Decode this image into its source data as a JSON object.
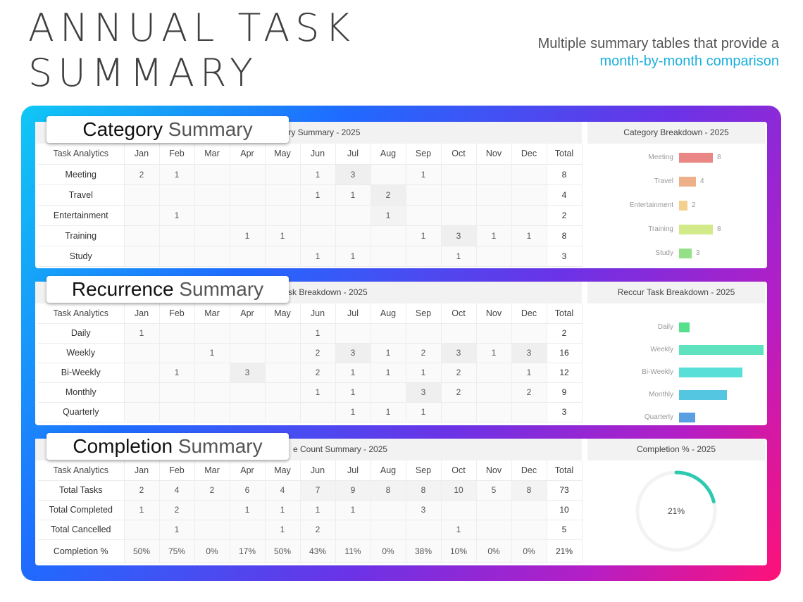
{
  "header": {
    "title_line1": "ANNUAL TASK",
    "title_line2": "SUMMARY",
    "subtitle_line1": "Multiple summary tables that provide a",
    "subtitle_line2": "month-by-month comparison",
    "accent_color": "#1bb0dc"
  },
  "months": [
    "Jan",
    "Feb",
    "Mar",
    "Apr",
    "May",
    "Jun",
    "Jul",
    "Aug",
    "Sep",
    "Oct",
    "Nov",
    "Dec"
  ],
  "category": {
    "badge_bold": "Category",
    "badge_light": "Summary",
    "table_title": "gory Summary - 2025",
    "corner": "Task Analytics",
    "total_header": "Total",
    "rows": [
      {
        "label": "Meeting",
        "color": "#e57373",
        "values": [
          "2",
          "1",
          "",
          "",
          "",
          "1",
          "3",
          "",
          "1",
          "",
          "",
          ""
        ],
        "total": "8"
      },
      {
        "label": "Travel",
        "color": "#f0a070",
        "values": [
          "",
          "",
          "",
          "",
          "",
          "1",
          "1",
          "2",
          "",
          "",
          "",
          ""
        ],
        "total": "4"
      },
      {
        "label": "Entertainment",
        "color": "#f1c878",
        "values": [
          "",
          "1",
          "",
          "",
          "",
          "",
          "",
          "1",
          "",
          "",
          "",
          ""
        ],
        "total": "2"
      },
      {
        "label": "Training",
        "color": "#c9e07a",
        "values": [
          "",
          "",
          "",
          "1",
          "1",
          "",
          "",
          "",
          "1",
          "3",
          "1",
          "1"
        ],
        "total": "8"
      },
      {
        "label": "Study",
        "color": "#8edc72",
        "values": [
          "",
          "",
          "",
          "",
          "",
          "1",
          "1",
          "",
          "",
          "1",
          "",
          ""
        ],
        "total": "3"
      }
    ],
    "panel_title": "Category Breakdown - 2025",
    "bars": [
      {
        "label": "Meeting",
        "value": 8,
        "display": "8",
        "color": "#ea8686"
      },
      {
        "label": "Travel",
        "value": 4,
        "display": "4",
        "color": "#eeb088"
      },
      {
        "label": "Entertainment",
        "value": 2,
        "display": "2",
        "color": "#f3d08e"
      },
      {
        "label": "Training",
        "value": 8,
        "display": "8",
        "color": "#d3ea8a"
      },
      {
        "label": "Study",
        "value": 3,
        "display": "3",
        "color": "#93e086"
      }
    ]
  },
  "recurrence": {
    "badge_bold": "Recurrence",
    "badge_light": "Summary",
    "table_title": "sk Breakdown - 2025",
    "corner": "Task Analytics",
    "total_header": "Total",
    "rows": [
      {
        "label": "Daily",
        "color": "#5a5fd6",
        "values": [
          "1",
          "",
          "",
          "",
          "",
          "1",
          "",
          "",
          "",
          "",
          "",
          ""
        ],
        "total": "2"
      },
      {
        "label": "Weekly",
        "color": "#5b8ee6",
        "values": [
          "",
          "",
          "1",
          "",
          "",
          "2",
          "3",
          "1",
          "2",
          "3",
          "1",
          "3"
        ],
        "total": "16"
      },
      {
        "label": "Bi-Weekly",
        "color": "#4fb7e6",
        "values": [
          "",
          "1",
          "",
          "3",
          "",
          "2",
          "1",
          "1",
          "1",
          "2",
          "",
          "1"
        ],
        "total": "12"
      },
      {
        "label": "Monthly",
        "color": "#4fd0d8",
        "values": [
          "",
          "",
          "",
          "",
          "",
          "1",
          "1",
          "",
          "3",
          "2",
          "",
          "2"
        ],
        "total": "9"
      },
      {
        "label": "Quarterly",
        "color": "#56dfae",
        "values": [
          "",
          "",
          "",
          "",
          "",
          "",
          "1",
          "1",
          "1",
          "",
          "",
          ""
        ],
        "total": "3"
      }
    ],
    "panel_title": "Reccur Task Breakdown - 2025",
    "bars": [
      {
        "label": "Daily",
        "value": 2,
        "color": "#57e08c"
      },
      {
        "label": "Weekly",
        "value": 16,
        "color": "#5ee3be"
      },
      {
        "label": "Bi-Weekly",
        "value": 12,
        "color": "#58dfd8"
      },
      {
        "label": "Monthly",
        "value": 9,
        "color": "#55c6e2"
      },
      {
        "label": "Quarterly",
        "value": 3,
        "color": "#5b9fe3"
      }
    ]
  },
  "completion": {
    "badge_bold": "Completion",
    "badge_light": "Summary",
    "table_title": "e Count Summary - 2025",
    "corner": "Task Analytics",
    "total_header": "Total",
    "rows": [
      {
        "label": "Total Tasks",
        "color": "",
        "values": [
          "2",
          "4",
          "2",
          "6",
          "4",
          "7",
          "9",
          "8",
          "8",
          "10",
          "5",
          "8"
        ],
        "total": "73"
      },
      {
        "label": "Total Completed",
        "color": "#2fc8b4",
        "values": [
          "1",
          "2",
          "",
          "1",
          "1",
          "1",
          "1",
          "",
          "3",
          "",
          "",
          ""
        ],
        "total": "10"
      },
      {
        "label": "Total Cancelled",
        "color": "#f0507a",
        "values": [
          "",
          "1",
          "",
          "",
          "1",
          "2",
          "",
          "",
          "",
          "1",
          "",
          ""
        ],
        "total": "5"
      }
    ],
    "pct_row": {
      "label": "Completion %",
      "values": [
        "50%",
        "75%",
        "0%",
        "17%",
        "50%",
        "43%",
        "11%",
        "0%",
        "38%",
        "10%",
        "0%",
        "0%"
      ],
      "total": "21%"
    },
    "panel_title": "Completion % - 2025",
    "donut_value": 0.21,
    "donut_label": "21%",
    "donut_color": "#2ec9b0"
  }
}
